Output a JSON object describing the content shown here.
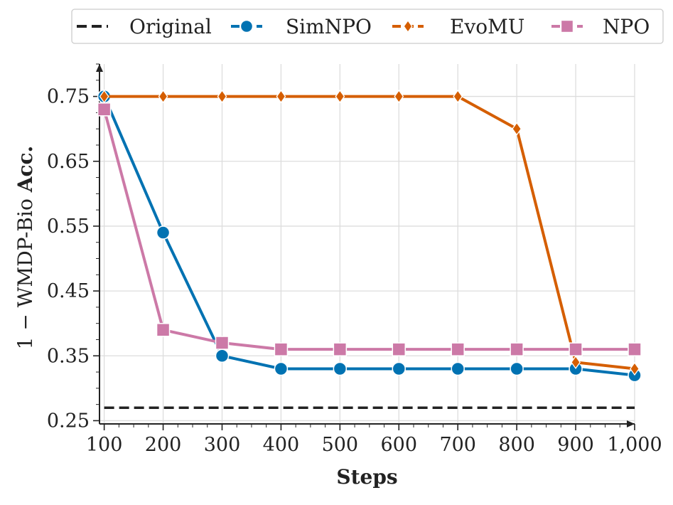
{
  "chart_data": {
    "type": "line",
    "title": "",
    "xlabel": "Steps",
    "ylabel_plain": "1 − WMDP-Bio ",
    "ylabel_bold": "Acc.",
    "x": [
      100,
      200,
      300,
      400,
      500,
      600,
      700,
      800,
      900,
      1000
    ],
    "x_tick_labels": [
      "100",
      "200",
      "300",
      "400",
      "500",
      "600",
      "700",
      "800",
      "900",
      "1,000"
    ],
    "y_ticks": [
      0.25,
      0.35,
      0.45,
      0.55,
      0.65,
      0.75
    ],
    "y_tick_labels": [
      "0.25",
      "0.35",
      "0.45",
      "0.55",
      "0.65",
      "0.75"
    ],
    "xlim": [
      92,
      1000
    ],
    "ylim": [
      0.245,
      0.8
    ],
    "grid": true,
    "legend_position": "top",
    "series": [
      {
        "name": "Original",
        "color": "#222222",
        "marker": "none",
        "dashed": true,
        "values": [
          0.27,
          0.27,
          0.27,
          0.27,
          0.27,
          0.27,
          0.27,
          0.27,
          0.27,
          0.27
        ]
      },
      {
        "name": "SimNPO",
        "color": "#0072B2",
        "marker": "circle",
        "values": [
          0.75,
          0.54,
          0.35,
          0.33,
          0.33,
          0.33,
          0.33,
          0.33,
          0.33,
          0.32
        ]
      },
      {
        "name": "EvoMU",
        "color": "#D55E00",
        "marker": "diamond",
        "values": [
          0.75,
          0.75,
          0.75,
          0.75,
          0.75,
          0.75,
          0.75,
          0.7,
          0.34,
          0.33
        ]
      },
      {
        "name": "NPO",
        "color": "#CC79A7",
        "marker": "square",
        "values": [
          0.73,
          0.39,
          0.37,
          0.36,
          0.36,
          0.36,
          0.36,
          0.36,
          0.36,
          0.36
        ]
      }
    ]
  }
}
